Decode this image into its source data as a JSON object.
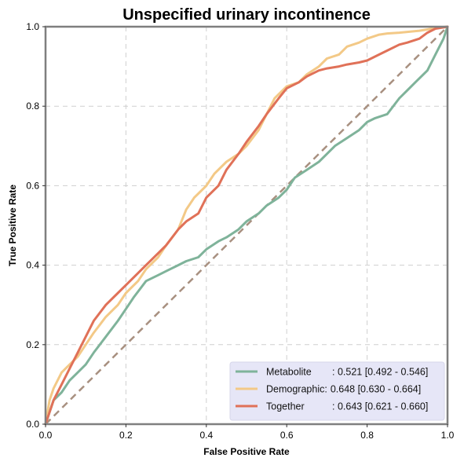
{
  "chart_data": {
    "type": "line",
    "title": "Unspecified urinary incontinence",
    "xlabel": "False Positive Rate",
    "ylabel": "True Positive Rate",
    "xlim": [
      0,
      1
    ],
    "ylim": [
      0,
      1
    ],
    "x_ticks": [
      "0.0",
      "0.2",
      "0.4",
      "0.6",
      "0.8",
      "1.0"
    ],
    "y_ticks": [
      "0.0",
      "0.2",
      "0.4",
      "0.6",
      "0.8",
      "1.0"
    ],
    "grid": true,
    "legend_position": "lower-right",
    "diagonal": {
      "color": "#a89080",
      "style": "dashed"
    },
    "series": [
      {
        "name": "Metabolite",
        "legend_label": "Metabolite",
        "legend_metric": ": 0.521 [0.492 - 0.546]",
        "color": "#7fb39a",
        "x": [
          0,
          0.01,
          0.02,
          0.04,
          0.06,
          0.08,
          0.1,
          0.12,
          0.15,
          0.18,
          0.2,
          0.22,
          0.25,
          0.28,
          0.3,
          0.33,
          0.35,
          0.38,
          0.4,
          0.43,
          0.45,
          0.48,
          0.5,
          0.53,
          0.55,
          0.58,
          0.6,
          0.62,
          0.65,
          0.68,
          0.7,
          0.72,
          0.75,
          0.78,
          0.8,
          0.82,
          0.85,
          0.88,
          0.9,
          0.92,
          0.95,
          0.97,
          0.99,
          1.0
        ],
        "y": [
          0,
          0.03,
          0.06,
          0.08,
          0.11,
          0.13,
          0.15,
          0.18,
          0.22,
          0.26,
          0.29,
          0.32,
          0.36,
          0.375,
          0.385,
          0.4,
          0.41,
          0.42,
          0.44,
          0.46,
          0.47,
          0.49,
          0.51,
          0.53,
          0.55,
          0.57,
          0.59,
          0.62,
          0.64,
          0.66,
          0.68,
          0.7,
          0.72,
          0.74,
          0.76,
          0.77,
          0.78,
          0.82,
          0.84,
          0.86,
          0.89,
          0.93,
          0.97,
          1.0
        ]
      },
      {
        "name": "Demographic",
        "legend_label": "Demographic:",
        "legend_metric": "0.648 [0.630 - 0.664]",
        "color": "#f3c987",
        "x": [
          0,
          0.01,
          0.02,
          0.04,
          0.06,
          0.08,
          0.1,
          0.12,
          0.15,
          0.18,
          0.2,
          0.23,
          0.25,
          0.28,
          0.3,
          0.33,
          0.35,
          0.37,
          0.4,
          0.42,
          0.45,
          0.48,
          0.5,
          0.53,
          0.55,
          0.57,
          0.6,
          0.63,
          0.65,
          0.68,
          0.7,
          0.73,
          0.75,
          0.78,
          0.8,
          0.83,
          0.85,
          0.88,
          0.9,
          0.93,
          0.95,
          0.97,
          1.0
        ],
        "y": [
          0,
          0.06,
          0.09,
          0.13,
          0.15,
          0.17,
          0.2,
          0.23,
          0.27,
          0.3,
          0.33,
          0.36,
          0.39,
          0.42,
          0.45,
          0.49,
          0.54,
          0.57,
          0.6,
          0.63,
          0.66,
          0.68,
          0.7,
          0.74,
          0.78,
          0.82,
          0.85,
          0.86,
          0.88,
          0.9,
          0.92,
          0.93,
          0.95,
          0.96,
          0.97,
          0.98,
          0.983,
          0.985,
          0.987,
          0.99,
          0.993,
          0.997,
          1.0
        ]
      },
      {
        "name": "Together",
        "legend_label": "Together",
        "legend_metric": ": 0.643 [0.621 - 0.660]",
        "color": "#e07158",
        "x": [
          0,
          0.01,
          0.02,
          0.04,
          0.06,
          0.08,
          0.1,
          0.12,
          0.15,
          0.18,
          0.2,
          0.23,
          0.25,
          0.28,
          0.3,
          0.33,
          0.35,
          0.38,
          0.4,
          0.43,
          0.45,
          0.48,
          0.5,
          0.53,
          0.55,
          0.58,
          0.6,
          0.63,
          0.65,
          0.68,
          0.7,
          0.73,
          0.75,
          0.78,
          0.8,
          0.83,
          0.85,
          0.88,
          0.9,
          0.93,
          0.95,
          0.97,
          1.0
        ],
        "y": [
          0,
          0.03,
          0.06,
          0.1,
          0.14,
          0.18,
          0.22,
          0.26,
          0.3,
          0.33,
          0.35,
          0.38,
          0.4,
          0.43,
          0.45,
          0.49,
          0.51,
          0.53,
          0.57,
          0.6,
          0.64,
          0.68,
          0.71,
          0.75,
          0.78,
          0.82,
          0.845,
          0.86,
          0.875,
          0.89,
          0.895,
          0.9,
          0.905,
          0.91,
          0.915,
          0.93,
          0.94,
          0.955,
          0.96,
          0.97,
          0.985,
          0.995,
          1.0
        ]
      }
    ]
  }
}
